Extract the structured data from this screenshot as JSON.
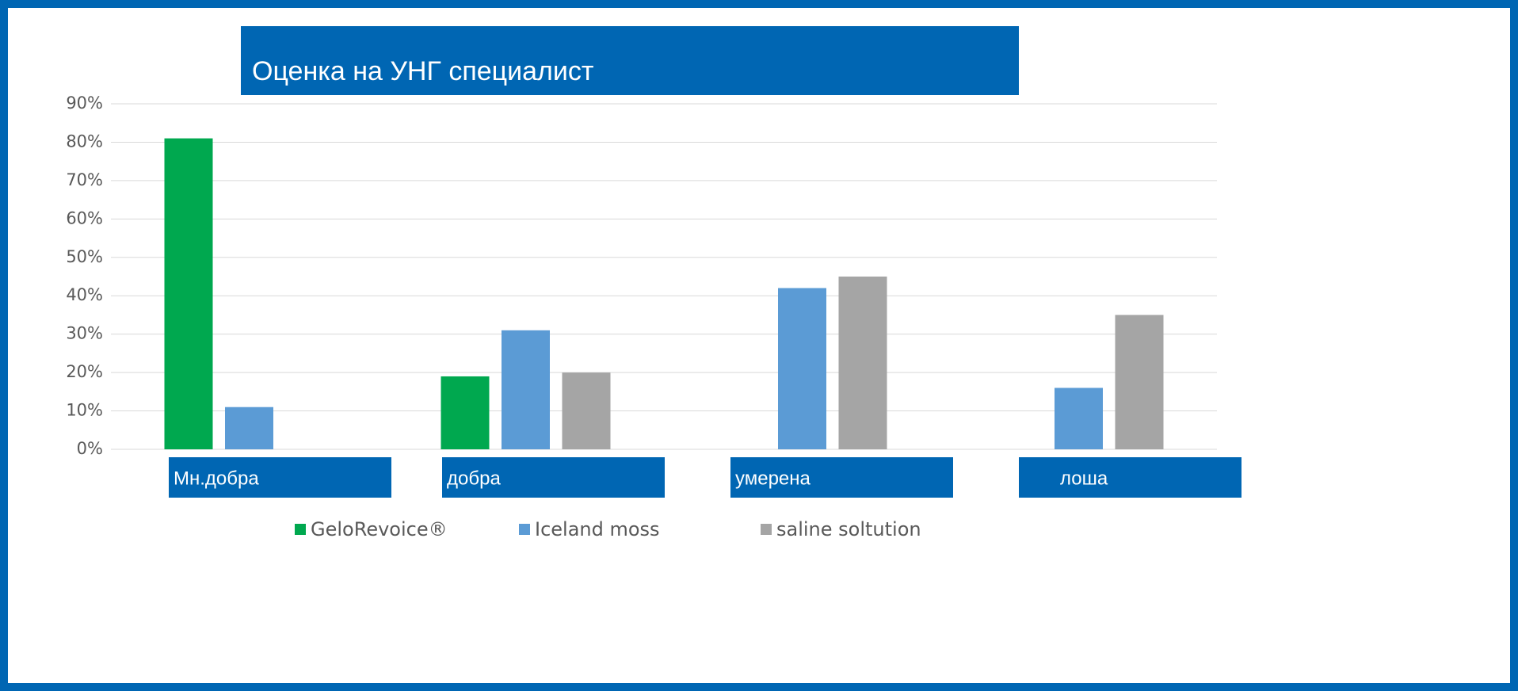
{
  "chart_data": {
    "type": "bar",
    "title": "Оценка на УНГ специалист",
    "categories": [
      "Мн.добра",
      "добра",
      "умерена",
      "лоша"
    ],
    "series": [
      {
        "name": "GeloRevoice®",
        "color": "#00a84f",
        "values": [
          81,
          19,
          0,
          0
        ]
      },
      {
        "name": "Iceland moss",
        "color": "#5b9bd5",
        "values": [
          11,
          31,
          42,
          16
        ]
      },
      {
        "name": "saline soltution",
        "color": "#a5a5a5",
        "values": [
          0,
          20,
          45,
          35
        ]
      }
    ],
    "ylim": [
      0,
      90
    ],
    "yticks": [
      {
        "value": 0,
        "label": "0%"
      },
      {
        "value": 10,
        "label": "10%"
      },
      {
        "value": 20,
        "label": "20%"
      },
      {
        "value": 30,
        "label": "30%"
      },
      {
        "value": 40,
        "label": "40%"
      },
      {
        "value": 50,
        "label": "50%"
      },
      {
        "value": 60,
        "label": "60%"
      },
      {
        "value": 70,
        "label": "70%"
      },
      {
        "value": 80,
        "label": "80%"
      },
      {
        "value": 90,
        "label": "90%"
      }
    ],
    "grid": true,
    "legend": "bottom"
  }
}
